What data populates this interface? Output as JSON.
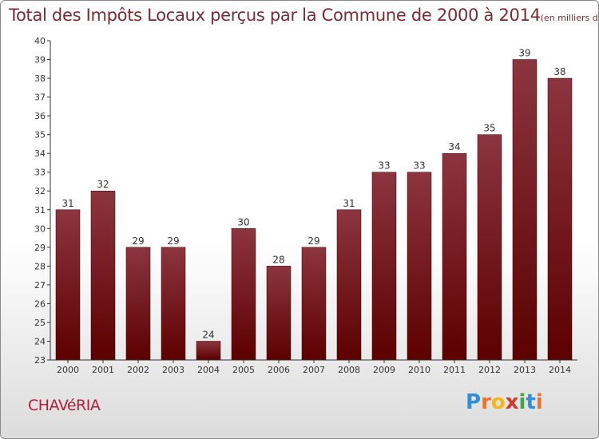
{
  "chart_data": {
    "type": "bar",
    "title": "Total des Impôts Locaux perçus par la Commune de 2000 à 2014",
    "unit_label": "(en milliers d'€)",
    "categories": [
      "2000",
      "2001",
      "2002",
      "2003",
      "2004",
      "2005",
      "2006",
      "2007",
      "2008",
      "2009",
      "2010",
      "2011",
      "2012",
      "2013",
      "2014"
    ],
    "values": [
      31,
      32,
      29,
      29,
      24,
      30,
      28,
      29,
      31,
      33,
      33,
      34,
      35,
      39,
      38
    ],
    "data_labels": [
      "31",
      "32",
      "29",
      "29",
      "24",
      "30",
      "28",
      "29",
      "31",
      "33",
      "33",
      "34",
      "35",
      "39",
      "38"
    ],
    "ylim": [
      23,
      40
    ],
    "yticks": [
      "23",
      "24",
      "25",
      "26",
      "27",
      "28",
      "29",
      "30",
      "31",
      "32",
      "33",
      "34",
      "35",
      "36",
      "37",
      "38",
      "39",
      "40"
    ],
    "xlabel": "",
    "ylabel": "",
    "grid": false,
    "colors": {
      "bar_top": "#8c3540",
      "bar_bottom": "#5c0000",
      "axis": "#333333",
      "text": "#333333"
    }
  },
  "commune": "CHAVéRIA",
  "logo": {
    "p": "P",
    "r": "r",
    "o": "o",
    "x": "x",
    "i1": "i",
    "t": "t",
    "i2": "i"
  }
}
